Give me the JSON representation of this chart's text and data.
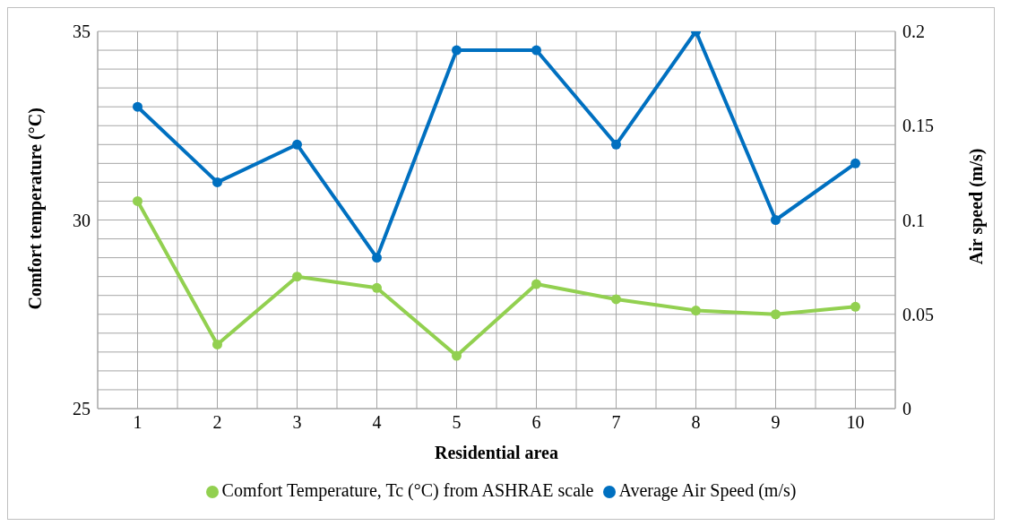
{
  "chart_data": {
    "type": "line",
    "xlabel": "Residential area",
    "ylabel": "Comfort temperature (°C)",
    "y2label": "Air speed (m/s)",
    "categories": [
      "1",
      "2",
      "3",
      "4",
      "5",
      "6",
      "7",
      "8",
      "9",
      "10"
    ],
    "series": [
      {
        "name": "Comfort Temperature, Tc (°C) from ASHRAE scale",
        "color": "#92d050",
        "values": [
          30.5,
          26.7,
          28.5,
          28.2,
          26.4,
          28.3,
          27.9,
          27.6,
          27.5,
          27.7
        ]
      },
      {
        "name": "Average Air Speed (m/s)",
        "color": "#0070c0",
        "axis": "y2",
        "values": [
          0.16,
          0.12,
          0.14,
          0.08,
          0.19,
          0.19,
          0.14,
          0.2,
          0.1,
          0.13
        ]
      }
    ],
    "ylim": [
      25,
      35
    ],
    "yticks": [
      25,
      {
        "value": 25.5,
        "label": null
      },
      {
        "value": 26,
        "label": null
      },
      {
        "value": 26.5,
        "label": null
      },
      {
        "value": 27,
        "label": null
      },
      {
        "value": 27.5,
        "label": null
      },
      {
        "value": 28,
        "label": null
      },
      {
        "value": 28.5,
        "label": null
      },
      {
        "value": 29,
        "label": null
      },
      {
        "value": 29.5,
        "label": null
      },
      30,
      {
        "value": 30.5,
        "label": null
      },
      {
        "value": 31,
        "label": null
      },
      {
        "value": 31.5,
        "label": null
      },
      {
        "value": 32,
        "label": null
      },
      {
        "value": 32.5,
        "label": null
      },
      {
        "value": 33,
        "label": null
      },
      {
        "value": 33.5,
        "label": null
      },
      {
        "value": 34,
        "label": null
      },
      {
        "value": 34.5,
        "label": null
      },
      35
    ],
    "y2lim": [
      0,
      0.2
    ],
    "y2ticks": [
      0,
      0.05,
      0.1,
      0.15,
      0.2
    ],
    "grid": true,
    "legend": "bottom",
    "marker": "circle",
    "line_style": "solid"
  }
}
